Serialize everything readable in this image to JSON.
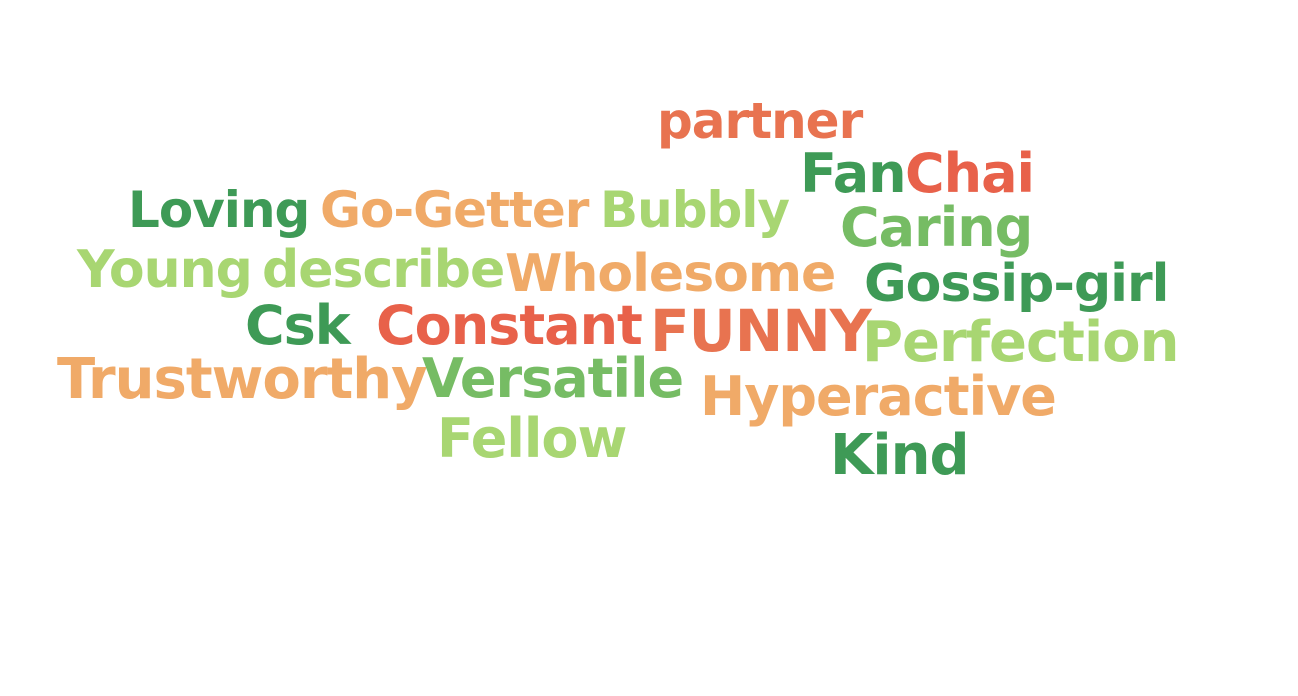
{
  "words": [
    {
      "id": "partner",
      "text": "partner",
      "color": "#e87350"
    },
    {
      "id": "fan",
      "text": "Fan",
      "color": "#3e9a56"
    },
    {
      "id": "chai",
      "text": "Chai",
      "color": "#e8614a"
    },
    {
      "id": "loving",
      "text": "Loving",
      "color": "#3e9a56"
    },
    {
      "id": "gogetter",
      "text": "Go-Getter",
      "color": "#f0aa68"
    },
    {
      "id": "bubbly",
      "text": "Bubbly",
      "color": "#a8d672"
    },
    {
      "id": "caring",
      "text": "Caring",
      "color": "#76bc64"
    },
    {
      "id": "young",
      "text": "Young",
      "color": "#a8d672"
    },
    {
      "id": "describe",
      "text": "describe",
      "color": "#a8d672"
    },
    {
      "id": "wholesome",
      "text": "Wholesome",
      "color": "#f0aa68"
    },
    {
      "id": "gossipgirl",
      "text": "Gossip-girl",
      "color": "#3e9a56"
    },
    {
      "id": "csk",
      "text": "Csk",
      "color": "#3e9a56"
    },
    {
      "id": "constant",
      "text": "Constant",
      "color": "#e8614a"
    },
    {
      "id": "funny",
      "text": "FUNNY",
      "color": "#e87350"
    },
    {
      "id": "perfection",
      "text": "Perfection",
      "color": "#a8d672"
    },
    {
      "id": "trustworthy",
      "text": "Trustworthy",
      "color": "#f0aa68"
    },
    {
      "id": "versatile",
      "text": "Versatile",
      "color": "#76bc64"
    },
    {
      "id": "hyperactive",
      "text": "Hyperactive",
      "color": "#f0aa68"
    },
    {
      "id": "fellow",
      "text": "Fellow",
      "color": "#a8d672"
    },
    {
      "id": "kind",
      "text": "Kind",
      "color": "#3e9a56"
    }
  ]
}
